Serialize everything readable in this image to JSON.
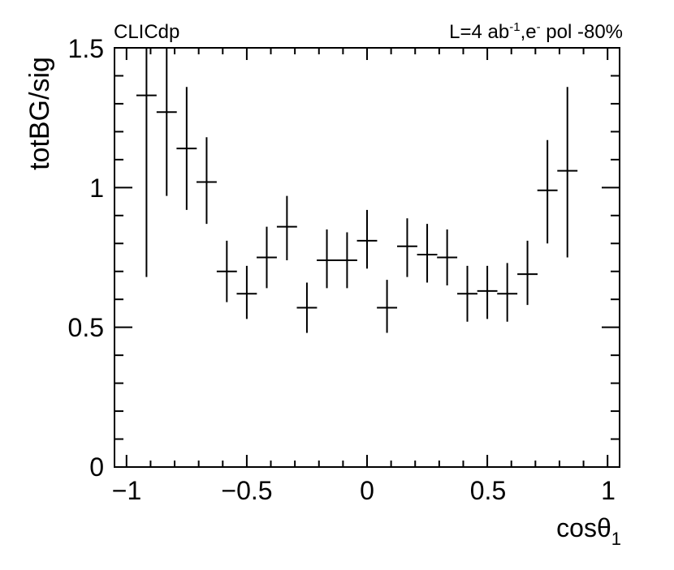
{
  "chart_data": {
    "type": "scatter",
    "top_left_label": "CLICdp",
    "top_right_label": {
      "main": "L=4 ab",
      "exp": "-1",
      "mid": ",e",
      "exp2": "-",
      "tail": " pol -80%"
    },
    "ylabel": "totBG/sig",
    "xlabel": {
      "main": "cosθ",
      "sub": "1"
    },
    "xlim": [
      -1.05,
      1.05
    ],
    "ylim": [
      0,
      1.5
    ],
    "x_ticks": [
      "−1",
      "−0.5",
      "0",
      "0.5",
      "1"
    ],
    "y_ticks": [
      "0",
      "0.5",
      "1",
      "1.5"
    ],
    "grid": false,
    "x_half_width": 0.042,
    "series": [
      {
        "points": [
          {
            "x": -0.917,
            "y": 1.33,
            "ylo": 0.68,
            "yhi": 1.6
          },
          {
            "x": -0.833,
            "y": 1.27,
            "ylo": 0.97,
            "yhi": 1.6
          },
          {
            "x": -0.75,
            "y": 1.14,
            "ylo": 0.92,
            "yhi": 1.36
          },
          {
            "x": -0.667,
            "y": 1.02,
            "ylo": 0.87,
            "yhi": 1.18
          },
          {
            "x": -0.583,
            "y": 0.7,
            "ylo": 0.59,
            "yhi": 0.81
          },
          {
            "x": -0.5,
            "y": 0.62,
            "ylo": 0.53,
            "yhi": 0.72
          },
          {
            "x": -0.417,
            "y": 0.75,
            "ylo": 0.64,
            "yhi": 0.86
          },
          {
            "x": -0.333,
            "y": 0.86,
            "ylo": 0.74,
            "yhi": 0.97
          },
          {
            "x": -0.25,
            "y": 0.57,
            "ylo": 0.48,
            "yhi": 0.66
          },
          {
            "x": -0.167,
            "y": 0.74,
            "ylo": 0.64,
            "yhi": 0.85
          },
          {
            "x": -0.083,
            "y": 0.74,
            "ylo": 0.64,
            "yhi": 0.84
          },
          {
            "x": 0.0,
            "y": 0.81,
            "ylo": 0.71,
            "yhi": 0.92
          },
          {
            "x": 0.083,
            "y": 0.57,
            "ylo": 0.48,
            "yhi": 0.67
          },
          {
            "x": 0.167,
            "y": 0.79,
            "ylo": 0.68,
            "yhi": 0.89
          },
          {
            "x": 0.25,
            "y": 0.76,
            "ylo": 0.66,
            "yhi": 0.87
          },
          {
            "x": 0.333,
            "y": 0.75,
            "ylo": 0.65,
            "yhi": 0.85
          },
          {
            "x": 0.417,
            "y": 0.62,
            "ylo": 0.52,
            "yhi": 0.72
          },
          {
            "x": 0.5,
            "y": 0.63,
            "ylo": 0.53,
            "yhi": 0.72
          },
          {
            "x": 0.583,
            "y": 0.62,
            "ylo": 0.52,
            "yhi": 0.73
          },
          {
            "x": 0.667,
            "y": 0.69,
            "ylo": 0.58,
            "yhi": 0.81
          },
          {
            "x": 0.75,
            "y": 0.99,
            "ylo": 0.8,
            "yhi": 1.17
          },
          {
            "x": 0.833,
            "y": 1.06,
            "ylo": 0.75,
            "yhi": 1.36
          }
        ]
      }
    ]
  }
}
